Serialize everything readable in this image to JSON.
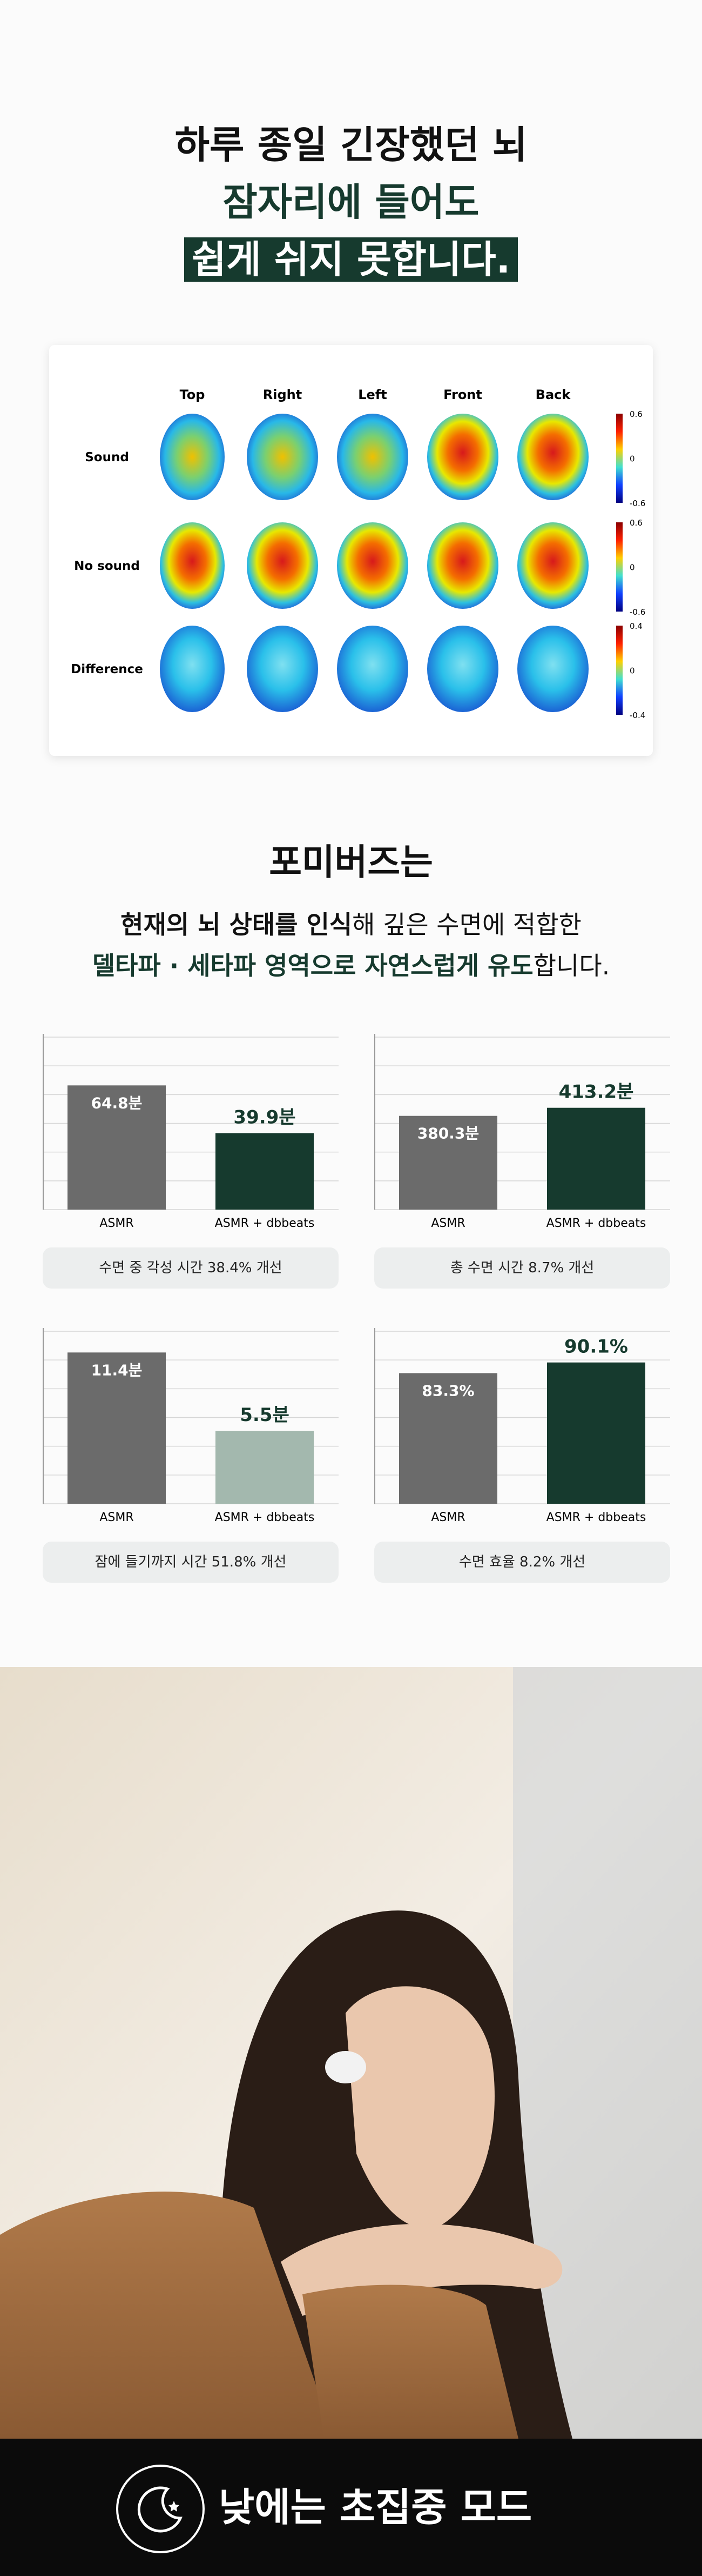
{
  "header": {
    "line1": "하루 종일 긴장했던 뇌",
    "line2": "잠자리에 들어도",
    "line3": "쉽게 쉬지 못합니다."
  },
  "brain_map": {
    "columns": [
      "Top",
      "Right",
      "Left",
      "Front",
      "Back"
    ],
    "rows": [
      "Sound",
      "No sound",
      "Difference"
    ],
    "colorbars": [
      [
        0.6,
        0,
        -0.6
      ],
      [
        0.6,
        0,
        -0.6
      ],
      [
        0.4,
        0,
        -0.4
      ]
    ]
  },
  "section": {
    "title": "포미버즈는",
    "line1_bold": "현재의 뇌 상태를 인식",
    "line1_rest": "해 깊은 수면에 적합한",
    "line2_bold": "델타파 · 세타파 영역으로 자연스럽게 유도",
    "line2_rest": "합니다."
  },
  "chart_data": [
    {
      "type": "bar",
      "categories": [
        "ASMR",
        "ASMR + dbbeats"
      ],
      "values": [
        64.8,
        39.9
      ],
      "value_labels": [
        "64.8분",
        "39.9분"
      ],
      "colors": [
        "#6b6b6b",
        "#163a2e"
      ],
      "ylim": [
        0,
        90
      ],
      "grid": true,
      "caption": "수면 중 각성 시간 38.4% 개선"
    },
    {
      "type": "bar",
      "categories": [
        "ASMR",
        "ASMR + dbbeats"
      ],
      "values": [
        380.3,
        413.2
      ],
      "value_labels": [
        "380.3분",
        "413.2분"
      ],
      "colors": [
        "#6b6b6b",
        "#163a2e"
      ],
      "ylim": [
        0,
        700
      ],
      "grid": true,
      "caption": "총 수면 시간 8.7% 개선"
    },
    {
      "type": "bar",
      "categories": [
        "ASMR",
        "ASMR + dbbeats"
      ],
      "values": [
        11.4,
        5.5
      ],
      "value_labels": [
        "11.4분",
        "5.5분"
      ],
      "colors": [
        "#6b6b6b",
        "#a3b8ae"
      ],
      "ylim": [
        0,
        13
      ],
      "grid": true,
      "caption": "잠에 들기까지 시간 51.8% 개선"
    },
    {
      "type": "bar",
      "categories": [
        "ASMR",
        "ASMR + dbbeats"
      ],
      "values": [
        83.3,
        90.1
      ],
      "value_labels": [
        "83.3%",
        "90.1%"
      ],
      "colors": [
        "#6b6b6b",
        "#163a2e"
      ],
      "ylim": [
        0,
        110
      ],
      "grid": true,
      "caption": "수면 효율 8.2% 개선"
    }
  ],
  "banner": {
    "text": "낮에는 초집중 모드"
  }
}
